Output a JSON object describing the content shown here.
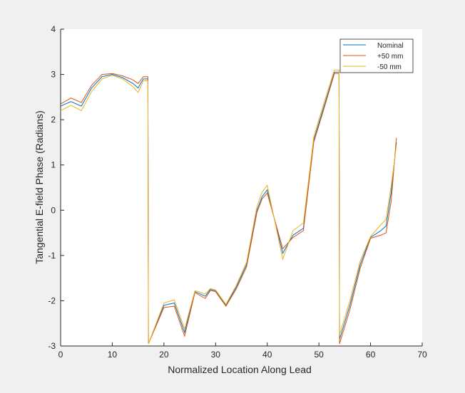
{
  "chart_data": {
    "type": "line",
    "title": "",
    "xlabel": "Normalized Location Along Lead",
    "ylabel": "Tangential E-field Phase (Radians)",
    "xlim": [
      0,
      70
    ],
    "ylim": [
      -3,
      4
    ],
    "xticks": [
      0,
      10,
      20,
      30,
      40,
      50,
      60,
      70
    ],
    "yticks": [
      -3,
      -2,
      -1,
      0,
      1,
      2,
      3,
      4
    ],
    "grid": false,
    "legend_position": "top-right",
    "series": [
      {
        "name": "Nominal",
        "color": "#0072BD",
        "x": [
          0,
          2,
          4,
          6,
          8,
          10,
          12,
          14,
          15,
          16,
          16.9,
          17,
          20,
          22,
          24,
          26,
          28,
          29,
          30,
          32,
          34,
          36,
          38,
          39,
          40,
          43,
          45,
          47,
          49,
          51,
          53,
          53.9,
          54,
          56,
          58,
          60,
          62,
          63,
          64,
          65
        ],
        "y": [
          2.3,
          2.4,
          2.3,
          2.7,
          2.95,
          3.0,
          2.93,
          2.8,
          2.7,
          2.9,
          2.9,
          -2.95,
          -2.1,
          -2.05,
          -2.7,
          -1.8,
          -1.9,
          -1.75,
          -1.78,
          -2.1,
          -1.7,
          -1.2,
          0.0,
          0.3,
          0.45,
          -0.95,
          -0.55,
          -0.4,
          1.55,
          2.3,
          3.05,
          3.05,
          -2.85,
          -2.1,
          -1.2,
          -0.6,
          -0.45,
          -0.35,
          0.4,
          1.5
        ]
      },
      {
        "name": "+50 mm",
        "color": "#D95319",
        "x": [
          0,
          2,
          4,
          6,
          8,
          10,
          12,
          14,
          15,
          16,
          16.9,
          17,
          20,
          22,
          24,
          26,
          28,
          29,
          30,
          32,
          34,
          36,
          38,
          39,
          40,
          43,
          45,
          47,
          49,
          51,
          53,
          53.9,
          54,
          56,
          58,
          60,
          62,
          63,
          64,
          65
        ],
        "y": [
          2.35,
          2.48,
          2.38,
          2.76,
          3.0,
          3.02,
          2.97,
          2.88,
          2.8,
          2.95,
          2.95,
          -2.95,
          -2.15,
          -2.12,
          -2.78,
          -1.82,
          -1.95,
          -1.77,
          -1.8,
          -2.12,
          -1.74,
          -1.25,
          -0.05,
          0.25,
          0.38,
          -0.85,
          -0.6,
          -0.45,
          1.5,
          2.25,
          3.02,
          3.02,
          -2.95,
          -2.2,
          -1.28,
          -0.62,
          -0.55,
          -0.5,
          0.2,
          1.6
        ]
      },
      {
        "name": "-50 mm",
        "color": "#EDB120",
        "x": [
          0,
          2,
          4,
          6,
          8,
          10,
          12,
          14,
          15,
          16,
          16.9,
          17,
          20,
          22,
          24,
          26,
          28,
          29,
          30,
          32,
          34,
          36,
          38,
          39,
          40,
          43,
          45,
          47,
          49,
          51,
          53,
          53.9,
          54,
          56,
          58,
          60,
          62,
          63,
          64,
          65
        ],
        "y": [
          2.2,
          2.32,
          2.2,
          2.62,
          2.9,
          2.98,
          2.9,
          2.73,
          2.6,
          2.86,
          2.86,
          -2.95,
          -2.05,
          -1.98,
          -2.62,
          -1.78,
          -1.85,
          -1.73,
          -1.76,
          -2.08,
          -1.66,
          -1.15,
          0.08,
          0.4,
          0.55,
          -1.08,
          -0.45,
          -0.28,
          1.62,
          2.38,
          3.1,
          3.1,
          -2.75,
          -2.0,
          -1.12,
          -0.58,
          -0.32,
          -0.2,
          0.55,
          1.42
        ]
      }
    ]
  }
}
